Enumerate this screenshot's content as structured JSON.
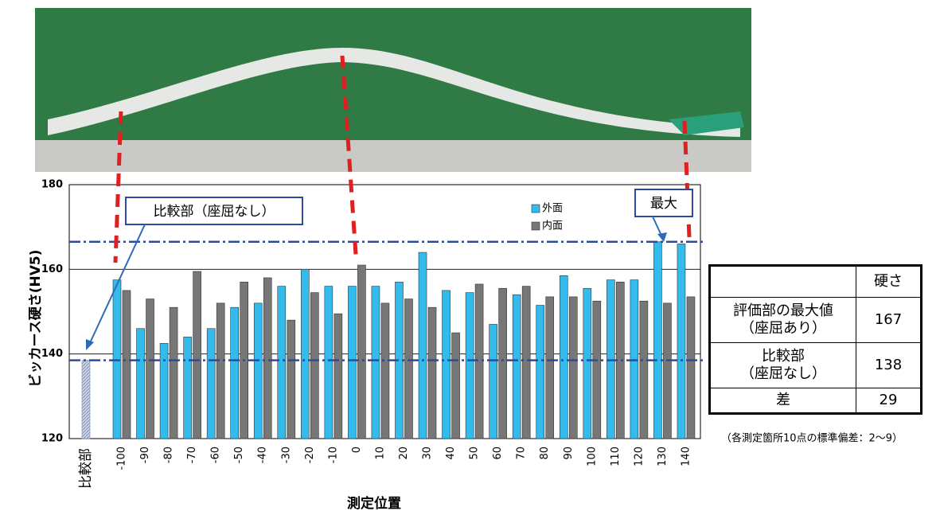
{
  "chart_data": {
    "type": "bar",
    "y_label": "ビッカース硬さ(HV5)",
    "x_label": "測定位置",
    "categories": [
      "比較部",
      "-100",
      "-90",
      "-80",
      "-70",
      "-60",
      "-50",
      "-40",
      "-30",
      "-20",
      "-10",
      "0",
      "10",
      "20",
      "30",
      "40",
      "50",
      "60",
      "70",
      "80",
      "90",
      "100",
      "110",
      "120",
      "130",
      "140"
    ],
    "series": [
      {
        "name": "外面",
        "color": "#33bbee",
        "values": [
          null,
          157.5,
          146,
          142.5,
          144,
          146,
          151,
          152,
          156,
          160,
          156,
          156,
          156,
          157,
          164,
          155,
          154.5,
          147,
          154,
          151.5,
          158.5,
          155.5,
          157.5,
          157.5,
          166.5,
          166
        ]
      },
      {
        "name": "内面",
        "color": "#777777",
        "values": [
          null,
          155,
          153,
          151,
          159.5,
          152,
          157,
          158,
          148,
          154.5,
          149.5,
          161,
          152,
          153,
          151,
          145,
          156.5,
          155.5,
          156,
          153.5,
          153.5,
          152.5,
          157,
          152.5,
          152,
          153.5
        ]
      },
      {
        "color": "#c9d3ea",
        "values": [
          138.5,
          null,
          null,
          null,
          null,
          null,
          null,
          null,
          null,
          null,
          null,
          null,
          null,
          null,
          null,
          null,
          null,
          null,
          null,
          null,
          null,
          null,
          null,
          null,
          null,
          null
        ]
      }
    ],
    "reference_lines": [
      {
        "value": 166.5,
        "color": "#2e4a9e"
      },
      {
        "value": 138.5,
        "color": "#2e4a9e"
      }
    ],
    "ylim": [
      120,
      180
    ],
    "yticks": [
      120,
      140,
      160,
      180
    ],
    "grid": true,
    "annotations": [
      "比較部（座屈なし）",
      "最大"
    ],
    "note": "（各測定箇所10点の標準偏差：2〜9）"
  },
  "table": {
    "header": [
      "",
      "硬さ"
    ],
    "rows": [
      [
        "評価部の最大値\n（座屈あり）",
        "167"
      ],
      [
        "比較部\n（座屈なし）",
        "138"
      ],
      [
        "差",
        "29"
      ]
    ]
  }
}
